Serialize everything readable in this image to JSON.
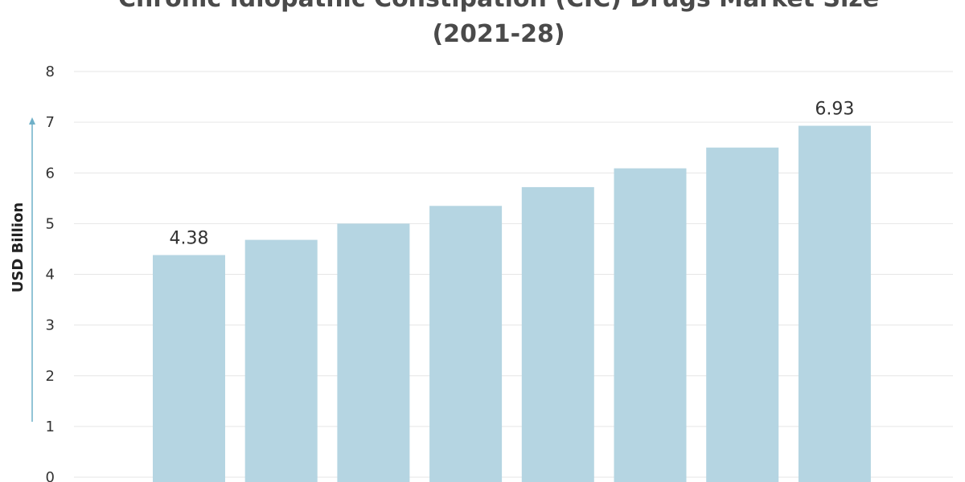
{
  "chart_data": {
    "type": "bar",
    "title_lines": [
      "Chronic Idiopathic Constipation (CIC) Drugs Market Size",
      "(2021-28)"
    ],
    "ylabel": "USD Billion",
    "xlabel": "",
    "categories": [
      "",
      "",
      "",
      "",
      "",
      "",
      "",
      ""
    ],
    "values": [
      4.38,
      4.68,
      5.0,
      5.35,
      5.72,
      6.09,
      6.5,
      6.93
    ],
    "data_labels": [
      "4.38",
      "",
      "",
      "",
      "",
      "",
      "",
      "6.93"
    ],
    "ylim": [
      0,
      8
    ],
    "yticks": [
      "0",
      "1",
      "2",
      "3",
      "4",
      "5",
      "6",
      "7",
      "8"
    ],
    "grid": true,
    "colors": {
      "bar": "#b5d5e2",
      "axis_arrow": "#6fb0c8"
    }
  }
}
